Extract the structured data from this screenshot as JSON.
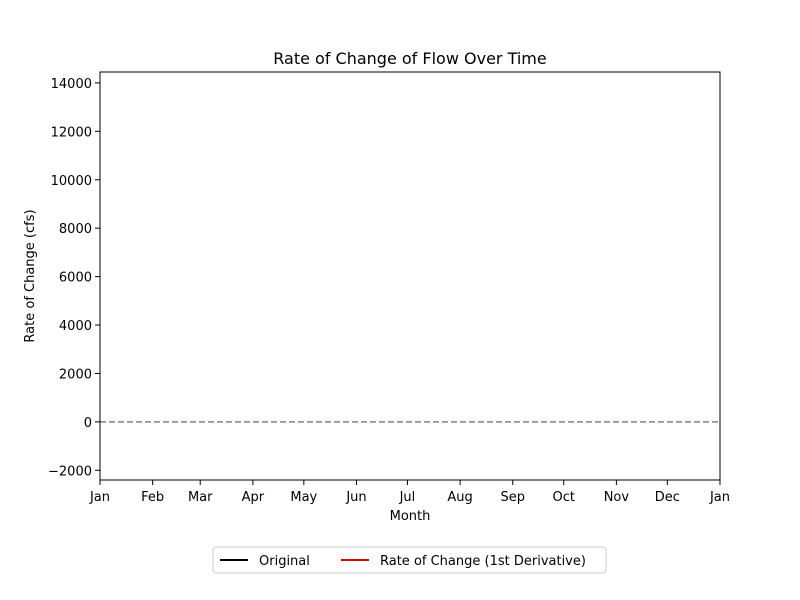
{
  "chart_data": {
    "type": "line",
    "title": "Rate of Change of Flow Over Time",
    "xlabel": "Month",
    "ylabel": "Rate of Change (cfs)",
    "x_ticks": [
      "Jan",
      "Feb",
      "Mar",
      "Apr",
      "May",
      "Jun",
      "Jul",
      "Aug",
      "Sep",
      "Oct",
      "Nov",
      "Dec",
      "Jan"
    ],
    "y_ticks": [
      -2000,
      0,
      2000,
      4000,
      6000,
      8000,
      10000,
      12000,
      14000
    ],
    "y_tick_labels": [
      "−2000",
      "0",
      "2000",
      "4000",
      "6000",
      "8000",
      "10000",
      "12000",
      "14000"
    ],
    "ylim": [
      -2400,
      14450
    ],
    "grid": false,
    "reference_line": {
      "y": 0,
      "style": "dashed",
      "color": "#808080"
    },
    "legend": {
      "placement": "bottom-center",
      "columns": 2
    },
    "series": [
      {
        "name": "Original",
        "color": "#000000",
        "values": []
      },
      {
        "name": "Rate of Change (1st Derivative)",
        "color": "#e00000",
        "values": []
      }
    ]
  }
}
